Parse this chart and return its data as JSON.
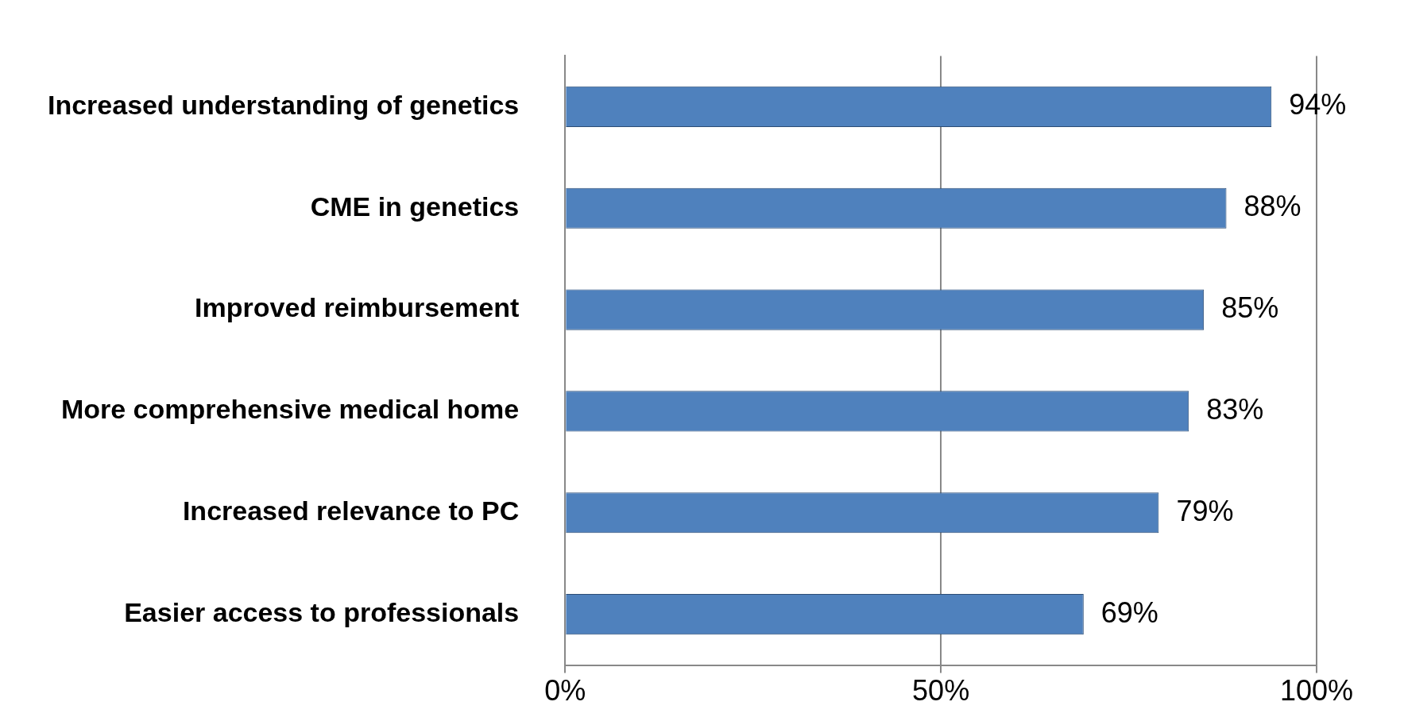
{
  "chart_data": {
    "type": "bar",
    "orientation": "horizontal",
    "categories": [
      "Increased understanding of genetics",
      "CME in genetics",
      "Improved reimbursement",
      "More comprehensive medical home",
      "Increased relevance to PC",
      "Easier access to professionals"
    ],
    "values": [
      94,
      88,
      85,
      83,
      79,
      69
    ],
    "value_labels": [
      "94%",
      "88%",
      "85%",
      "83%",
      "79%",
      "69%"
    ],
    "color": "#4f81bd",
    "xlim": [
      0,
      100
    ],
    "xticks": [
      {
        "value": 0,
        "label": "0%"
      },
      {
        "value": 50,
        "label": "50%"
      },
      {
        "value": 100,
        "label": "100%"
      }
    ],
    "grid": "x",
    "legend": false
  }
}
